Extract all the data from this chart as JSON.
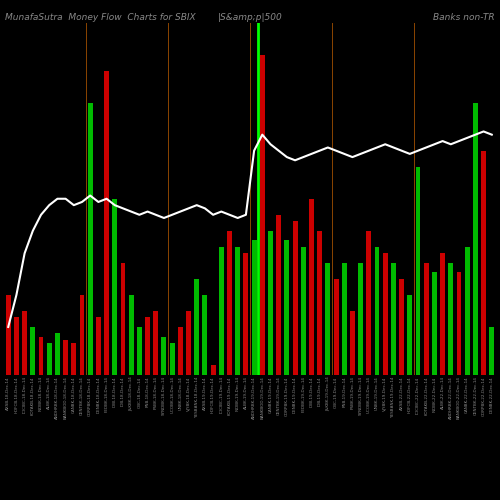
{
  "title_left": "MunafaSutra  Money Flow  Charts for SBIX",
  "title_mid": "|S&amp;p|500",
  "title_right": "Banks non-TR",
  "background_color": "#000000",
  "num_bars": 60,
  "bar_values": [
    2.5,
    1.8,
    2.0,
    1.5,
    1.2,
    1.0,
    1.3,
    1.1,
    1.0,
    2.5,
    8.5,
    1.8,
    9.5,
    5.5,
    3.5,
    2.5,
    1.5,
    1.8,
    2.0,
    1.2,
    1.0,
    1.5,
    2.0,
    3.0,
    2.5,
    0.3,
    4.0,
    4.5,
    4.0,
    3.8,
    4.2,
    10.0,
    4.5,
    5.0,
    4.2,
    4.8,
    4.0,
    5.5,
    4.5,
    3.5,
    3.0,
    3.5,
    2.0,
    3.5,
    4.5,
    4.0,
    3.8,
    3.5,
    3.0,
    2.5,
    6.5,
    3.5,
    3.2,
    3.8,
    3.5,
    3.2,
    4.0,
    8.5,
    7.0,
    1.5
  ],
  "bar_colors": [
    "#cc0000",
    "#cc0000",
    "#cc0000",
    "#00bb00",
    "#cc0000",
    "#00bb00",
    "#00bb00",
    "#cc0000",
    "#cc0000",
    "#cc0000",
    "#00bb00",
    "#cc0000",
    "#cc0000",
    "#00bb00",
    "#cc0000",
    "#00bb00",
    "#00bb00",
    "#cc0000",
    "#cc0000",
    "#00bb00",
    "#00bb00",
    "#cc0000",
    "#cc0000",
    "#00bb00",
    "#00bb00",
    "#cc0000",
    "#00bb00",
    "#cc0000",
    "#00bb00",
    "#cc0000",
    "#00bb00",
    "#cc0000",
    "#00bb00",
    "#cc0000",
    "#00bb00",
    "#cc0000",
    "#00bb00",
    "#cc0000",
    "#cc0000",
    "#00bb00",
    "#cc0000",
    "#00bb00",
    "#cc0000",
    "#00bb00",
    "#cc0000",
    "#00bb00",
    "#cc0000",
    "#00bb00",
    "#cc0000",
    "#00bb00",
    "#00bb00",
    "#cc0000",
    "#00bb00",
    "#cc0000",
    "#00bb00",
    "#cc0000",
    "#00bb00",
    "#00bb00",
    "#cc0000",
    "#00bb00"
  ],
  "white_line_y": [
    1.5,
    2.5,
    3.8,
    4.5,
    5.0,
    5.3,
    5.5,
    5.5,
    5.3,
    5.4,
    5.6,
    5.4,
    5.5,
    5.3,
    5.2,
    5.1,
    5.0,
    5.1,
    5.0,
    4.9,
    5.0,
    5.1,
    5.2,
    5.3,
    5.2,
    5.0,
    5.1,
    5.0,
    4.9,
    5.0,
    7.0,
    7.5,
    7.2,
    7.0,
    6.8,
    6.7,
    6.8,
    6.9,
    7.0,
    7.1,
    7.0,
    6.9,
    6.8,
    6.9,
    7.0,
    7.1,
    7.2,
    7.1,
    7.0,
    6.9,
    7.0,
    7.1,
    7.2,
    7.3,
    7.2,
    7.3,
    7.4,
    7.5,
    7.6,
    7.5
  ],
  "green_vline_pos": 31,
  "divider_positions": [
    10,
    20,
    30,
    40,
    50
  ],
  "divider_color": "#8B4500",
  "tick_labels": [
    "AXSB,18-Dec-14",
    "HDFCB,18-Dec-14",
    "ICICIBC,18-Dec-14",
    "KOTAKB,18-Dec-14",
    "INDBK,18-Dec-14",
    "ALBK,18-Dec-14",
    "ANDHRBK,18-Dec-14",
    "BANKBOD,18-Dec-14",
    "CANBK,18-Dec-14",
    "CENTBK,18-Dec-14",
    "CORPBK,18-Dec-14",
    "DENBK,18-Dec-14",
    "FEDBK,18-Dec-14",
    "IDBI,18-Dec-14",
    "IOB,18-Dec-14",
    "J&KBK,18-Dec-14",
    "OBC,18-Dec-14",
    "PNB,18-Dec-14",
    "PSBK,18-Dec-14",
    "SYNDBK,18-Dec-14",
    "UCOBK,18-Dec-14",
    "UNBK,18-Dec-14",
    "VJYBK,18-Dec-14",
    "YESBANK,18-Dec-14",
    "AXSB,19-Dec-14",
    "HDFCB,19-Dec-14",
    "ICICIBC,19-Dec-14",
    "KOTAKB,19-Dec-14",
    "INDBK,19-Dec-14",
    "ALBK,19-Dec-14",
    "ANDHRBK,19-Dec-14",
    "BANKBOD,19-Dec-14",
    "CANBK,19-Dec-14",
    "CENTBK,19-Dec-14",
    "CORPBK,19-Dec-14",
    "DENBK,19-Dec-14",
    "FEDBK,19-Dec-14",
    "IDBI,19-Dec-14",
    "IOB,19-Dec-14",
    "J&KBK,19-Dec-14",
    "OBC,19-Dec-14",
    "PNB,19-Dec-14",
    "PSBK,19-Dec-14",
    "SYNDBK,19-Dec-14",
    "UCOBK,19-Dec-14",
    "UNBK,19-Dec-14",
    "VJYBK,19-Dec-14",
    "YESBANK,19-Dec-14",
    "AXSB,22-Dec-14",
    "HDFCB,22-Dec-14",
    "ICICIBC,22-Dec-14",
    "KOTAKB,22-Dec-14",
    "INDBK,22-Dec-14",
    "ALBK,22-Dec-14",
    "ANDHRBK,22-Dec-14",
    "BANKBOD,22-Dec-14",
    "CANBK,22-Dec-14",
    "CENTBK,22-Dec-14",
    "CORPBK,22-Dec-14",
    "DENBK,22-Dec-14"
  ],
  "ylim": [
    0,
    11
  ],
  "title_fontsize": 6.5,
  "tick_fontsize": 3.0
}
